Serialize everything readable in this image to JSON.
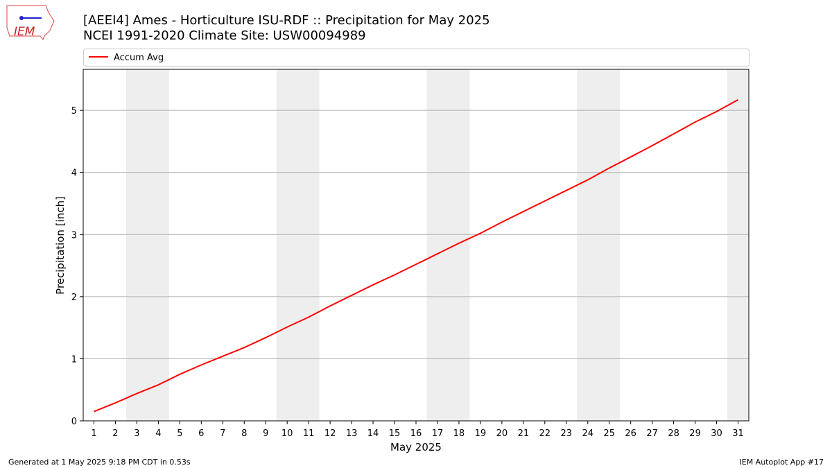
{
  "chart_data": {
    "type": "line",
    "title": "[AEEI4] Ames - Horticulture ISU-RDF :: Precipitation for May 2025",
    "subtitle": "NCEI 1991-2020 Climate Site: USW00094989",
    "logo_text": "IEM",
    "x_label": "May 2025",
    "y_label": "Precipitation [inch]",
    "footer_left": "Generated at 1 May 2025 9:18 PM CDT in 0.53s",
    "footer_right": "IEM Autoplot App #17",
    "x": [
      1,
      2,
      3,
      4,
      5,
      6,
      7,
      8,
      9,
      10,
      11,
      12,
      13,
      14,
      15,
      16,
      17,
      18,
      19,
      20,
      21,
      22,
      23,
      24,
      25,
      26,
      27,
      28,
      29,
      30,
      31
    ],
    "series": [
      {
        "name": "Accum Avg",
        "color": "#ff0000",
        "values": [
          0.15,
          0.29,
          0.44,
          0.58,
          0.75,
          0.9,
          1.04,
          1.18,
          1.34,
          1.51,
          1.67,
          1.85,
          2.02,
          2.19,
          2.35,
          2.52,
          2.69,
          2.86,
          3.02,
          3.2,
          3.37,
          3.54,
          3.71,
          3.88,
          4.07,
          4.25,
          4.43,
          4.62,
          4.81,
          4.98,
          5.17
        ]
      }
    ],
    "shaded_spans": [
      [
        2.5,
        4.5
      ],
      [
        9.5,
        11.5
      ],
      [
        16.5,
        18.5
      ],
      [
        23.5,
        25.5
      ],
      [
        30.5,
        31.5
      ]
    ],
    "shade_color": "#eeeeee",
    "xlim": [
      0.5,
      31.5
    ],
    "xticks": [
      1,
      2,
      3,
      4,
      5,
      6,
      7,
      8,
      9,
      10,
      11,
      12,
      13,
      14,
      15,
      16,
      17,
      18,
      19,
      20,
      21,
      22,
      23,
      24,
      25,
      26,
      27,
      28,
      29,
      30,
      31
    ],
    "ylim": [
      0,
      5.66
    ],
    "yticks": [
      0,
      1,
      2,
      3,
      4,
      5
    ],
    "grid": "y",
    "legend": "top"
  }
}
